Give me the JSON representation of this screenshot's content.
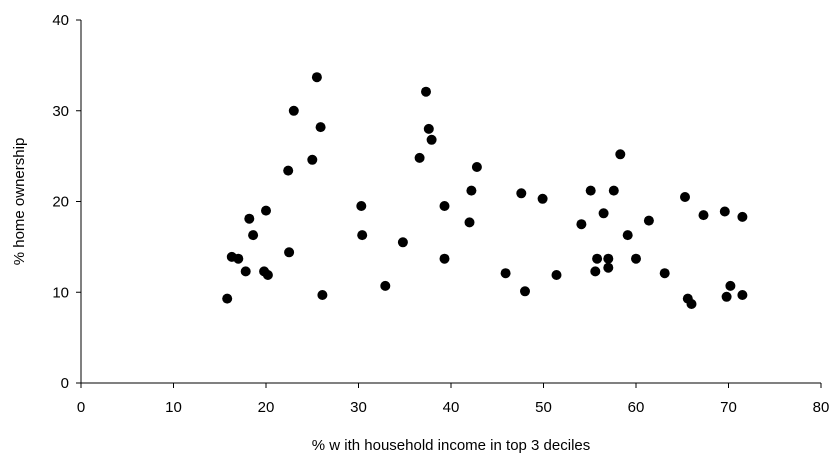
{
  "chart_data": {
    "type": "scatter",
    "title": "",
    "xlabel": "% w ith household income in top 3 deciles",
    "ylabel": "% home ownership",
    "xlim": [
      0,
      80
    ],
    "ylim": [
      0,
      40
    ],
    "x_ticks": [
      0,
      10,
      20,
      30,
      40,
      50,
      60,
      70,
      80
    ],
    "y_ticks": [
      0,
      10,
      20,
      30,
      40
    ],
    "grid": false,
    "legend": "none",
    "marker_color": "#000000",
    "series": [
      {
        "points": [
          [
            15.8,
            9.3
          ],
          [
            16.3,
            13.9
          ],
          [
            17.0,
            13.7
          ],
          [
            17.8,
            12.3
          ],
          [
            18.2,
            18.1
          ],
          [
            18.6,
            16.3
          ],
          [
            19.8,
            12.3
          ],
          [
            20.0,
            19.0
          ],
          [
            20.2,
            11.9
          ],
          [
            22.4,
            23.4
          ],
          [
            22.5,
            14.4
          ],
          [
            23.0,
            30.0
          ],
          [
            25.0,
            24.6
          ],
          [
            25.5,
            33.7
          ],
          [
            25.9,
            28.2
          ],
          [
            26.1,
            9.7
          ],
          [
            30.3,
            19.5
          ],
          [
            30.4,
            16.3
          ],
          [
            32.9,
            10.7
          ],
          [
            34.8,
            15.5
          ],
          [
            36.6,
            24.8
          ],
          [
            37.3,
            32.1
          ],
          [
            37.6,
            28.0
          ],
          [
            37.9,
            26.8
          ],
          [
            39.3,
            19.5
          ],
          [
            39.3,
            13.7
          ],
          [
            42.0,
            17.7
          ],
          [
            42.2,
            21.2
          ],
          [
            42.8,
            23.8
          ],
          [
            45.9,
            12.1
          ],
          [
            47.6,
            20.9
          ],
          [
            48.0,
            10.1
          ],
          [
            49.9,
            20.3
          ],
          [
            51.4,
            11.9
          ],
          [
            54.1,
            17.5
          ],
          [
            55.1,
            21.2
          ],
          [
            55.6,
            12.3
          ],
          [
            55.8,
            13.7
          ],
          [
            56.5,
            18.7
          ],
          [
            57.0,
            12.7
          ],
          [
            57.0,
            13.7
          ],
          [
            57.6,
            21.2
          ],
          [
            58.3,
            25.2
          ],
          [
            59.1,
            16.3
          ],
          [
            60.0,
            13.7
          ],
          [
            61.4,
            17.9
          ],
          [
            63.1,
            12.1
          ],
          [
            65.3,
            20.5
          ],
          [
            65.6,
            9.3
          ],
          [
            66.0,
            8.7
          ],
          [
            67.3,
            18.5
          ],
          [
            69.6,
            18.9
          ],
          [
            69.8,
            9.5
          ],
          [
            70.2,
            10.7
          ],
          [
            71.5,
            18.3
          ],
          [
            71.5,
            9.7
          ]
        ]
      }
    ]
  }
}
